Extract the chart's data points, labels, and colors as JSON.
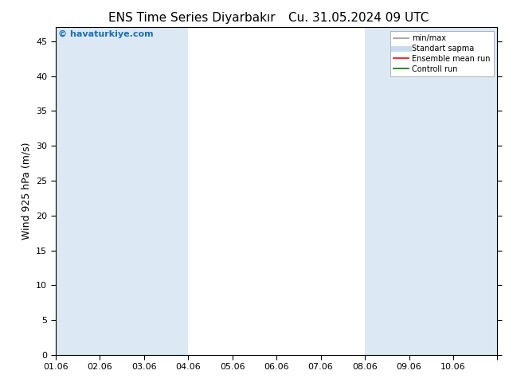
{
  "title_left": "ENS Time Series Diyarbakır",
  "title_right": "Cu. 31.05.2024 09 UTC",
  "ylabel": "Wind 925 hPa (m/s)",
  "watermark": "© havaturkiye.com",
  "ylim": [
    0,
    47
  ],
  "yticks": [
    0,
    5,
    10,
    15,
    20,
    25,
    30,
    35,
    40,
    45
  ],
  "xtick_labels": [
    "01.06",
    "02.06",
    "03.06",
    "04.06",
    "05.06",
    "06.06",
    "07.06",
    "08.06",
    "09.06",
    "10.06"
  ],
  "xlim": [
    0,
    10
  ],
  "shaded_spans": [
    [
      0,
      1
    ],
    [
      1,
      2
    ],
    [
      2,
      3
    ],
    [
      7,
      8
    ],
    [
      8,
      9
    ],
    [
      9,
      10
    ]
  ],
  "shaded_color": "#dce9f5",
  "bg_color": "#ffffff",
  "legend_items": [
    {
      "label": "min/max",
      "color": "#999999",
      "lw": 1.2,
      "style": "solid"
    },
    {
      "label": "Standart sapma",
      "color": "#c8dced",
      "lw": 5,
      "style": "solid"
    },
    {
      "label": "Ensemble mean run",
      "color": "#ff0000",
      "lw": 1.2,
      "style": "solid"
    },
    {
      "label": "Controll run",
      "color": "#007700",
      "lw": 1.2,
      "style": "solid"
    }
  ],
  "title_fontsize": 11,
  "tick_fontsize": 8,
  "ylabel_fontsize": 9,
  "watermark_color": "#1a6eb5",
  "n_x_positions": 10,
  "xtick_positions": [
    0,
    1,
    2,
    3,
    4,
    5,
    6,
    7,
    8,
    9,
    10
  ]
}
